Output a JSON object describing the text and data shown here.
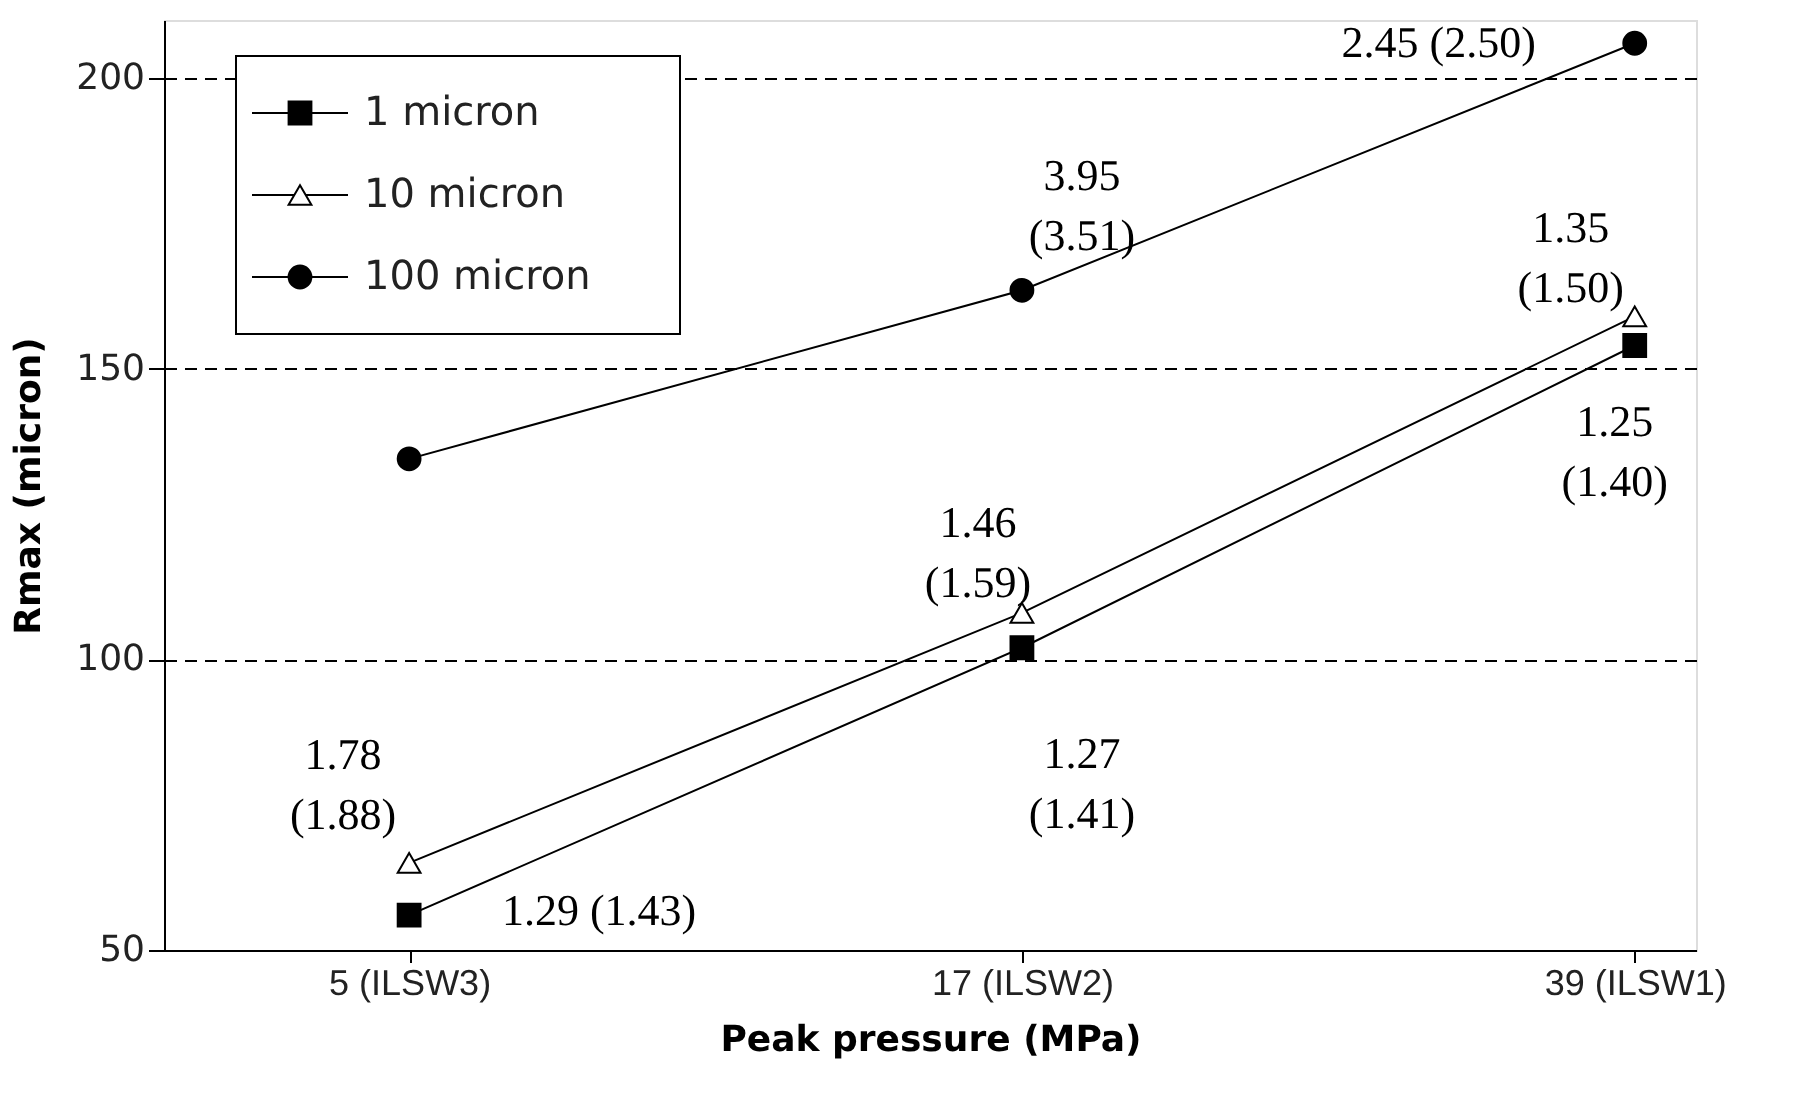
{
  "chart_data": {
    "type": "line",
    "xlabel": "Peak pressure (MPa)",
    "ylabel": "Rmax (micron)",
    "categories": [
      "5 (ILSW3)",
      "17 (ILSW2)",
      "39 (ILSW1)"
    ],
    "series": [
      {
        "name": "1 micron",
        "color": "#000000",
        "marker": "square",
        "values": [
          56,
          102,
          154
        ]
      },
      {
        "name": "10 micron",
        "color": "#000000",
        "marker": "triangle",
        "values": [
          65,
          108,
          159
        ]
      },
      {
        "name": "100 micron",
        "color": "#000000",
        "marker": "circle",
        "values": [
          134.5,
          163.5,
          206
        ]
      }
    ],
    "ylim": [
      50,
      210
    ],
    "yticks": [
      50,
      100,
      150,
      200
    ],
    "grid": "y",
    "legend": "top left",
    "line_style": "solid",
    "annotations": [
      {
        "text": "1.78 (1.88)",
        "x": "5 (ILSW3)",
        "y": 65
      },
      {
        "text": "1.29 (1.43)",
        "x": "5 (ILSW3)",
        "y": 56
      },
      {
        "text": "1.46 (1.59)",
        "x": "17 (ILSW2)",
        "y": 108
      },
      {
        "text": "1.27 (1.41)",
        "x": "17 (ILSW2)",
        "y": 102
      },
      {
        "text": "3.95 (3.51)",
        "x": "17 (ILSW2)",
        "y": 163.5
      },
      {
        "text": "2.45 (2.50)",
        "x": "39 (ILSW1)",
        "y": 206
      },
      {
        "text": "1.35 (1.50)",
        "x": "39 (ILSW1)",
        "y": 159
      },
      {
        "text": "1.25 (1.40)",
        "x": "39 (ILSW1)",
        "y": 154
      }
    ]
  }
}
